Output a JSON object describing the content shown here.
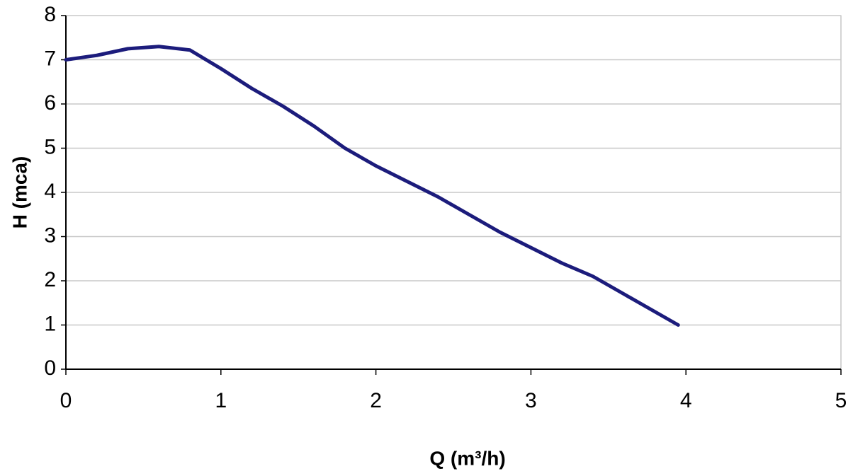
{
  "chart_data": {
    "type": "line",
    "x_label": "Q (m³/h)",
    "y_label": "H (mca)",
    "x": [
      0,
      0.2,
      0.4,
      0.6,
      0.8,
      1.0,
      1.2,
      1.4,
      1.6,
      1.8,
      2.0,
      2.2,
      2.4,
      2.6,
      2.8,
      3.0,
      3.2,
      3.4,
      3.6,
      3.8,
      3.95
    ],
    "values": [
      7.0,
      7.1,
      7.25,
      7.3,
      7.22,
      6.8,
      6.35,
      5.95,
      5.5,
      5.0,
      4.6,
      4.25,
      3.9,
      3.5,
      3.1,
      2.75,
      2.4,
      2.1,
      1.7,
      1.3,
      1.0
    ],
    "color": "#1c1c7c",
    "xlim": [
      0,
      5
    ],
    "xticks": [
      0,
      1,
      2,
      3,
      4,
      5
    ],
    "ylim": [
      0,
      8
    ],
    "yticks": [
      0,
      1,
      2,
      3,
      4,
      5,
      6,
      7,
      8
    ],
    "grid": true
  }
}
